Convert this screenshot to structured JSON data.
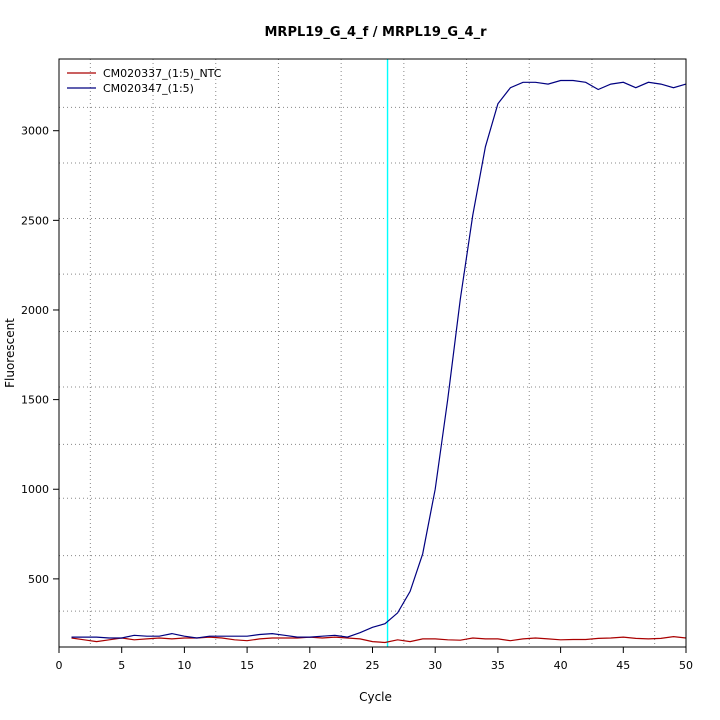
{
  "chart_data": {
    "type": "line",
    "title": "MRPL19_G_4_f / MRPL19_G_4_r",
    "xlabel": "Cycle",
    "ylabel": "Fluorescent",
    "xlim": [
      0,
      50
    ],
    "ylim": [
      120,
      3400
    ],
    "xticks": [
      0,
      5,
      10,
      15,
      20,
      25,
      30,
      35,
      40,
      45,
      50
    ],
    "yticks": [
      500,
      1000,
      1500,
      2000,
      2500,
      3000
    ],
    "grid_x": [
      2.5,
      7.5,
      12.5,
      17.5,
      22.5,
      27.5,
      32.5,
      37.5,
      42.5,
      47.5
    ],
    "grid_y": [
      320,
      630,
      950,
      1250,
      1570,
      1880,
      2200,
      2510,
      2820,
      3130
    ],
    "grid": true,
    "legend_position": "top-left",
    "threshold_cycle": 26.2,
    "threshold_color": "#00ffff",
    "x": [
      1,
      2,
      3,
      4,
      5,
      6,
      7,
      8,
      9,
      10,
      11,
      12,
      13,
      14,
      15,
      16,
      17,
      18,
      19,
      20,
      21,
      22,
      23,
      24,
      25,
      26,
      27,
      28,
      29,
      30,
      31,
      32,
      33,
      34,
      35,
      36,
      37,
      38,
      39,
      40,
      41,
      42,
      43,
      44,
      45,
      46,
      47,
      48,
      49,
      50
    ],
    "series": [
      {
        "name": "CM020337_(1:5)_NTC",
        "color": "#aa0000",
        "values": [
          170,
          160,
          150,
          160,
          170,
          160,
          165,
          170,
          165,
          170,
          170,
          175,
          170,
          160,
          155,
          165,
          170,
          170,
          170,
          175,
          170,
          175,
          170,
          165,
          150,
          145,
          160,
          150,
          165,
          165,
          160,
          158,
          170,
          165,
          165,
          155,
          165,
          170,
          165,
          160,
          162,
          162,
          168,
          170,
          175,
          168,
          165,
          168,
          178,
          170
        ]
      },
      {
        "name": "CM020347_(1:5)",
        "color": "#000080",
        "values": [
          175,
          175,
          175,
          170,
          170,
          185,
          180,
          180,
          195,
          180,
          170,
          180,
          180,
          180,
          180,
          190,
          195,
          185,
          175,
          175,
          180,
          185,
          175,
          200,
          230,
          250,
          310,
          430,
          640,
          1000,
          1500,
          2060,
          2530,
          2910,
          3150,
          3240,
          3270,
          3270,
          3260,
          3280,
          3280,
          3270,
          3230,
          3260,
          3270,
          3240,
          3270,
          3260,
          3240,
          3260
        ]
      }
    ]
  }
}
